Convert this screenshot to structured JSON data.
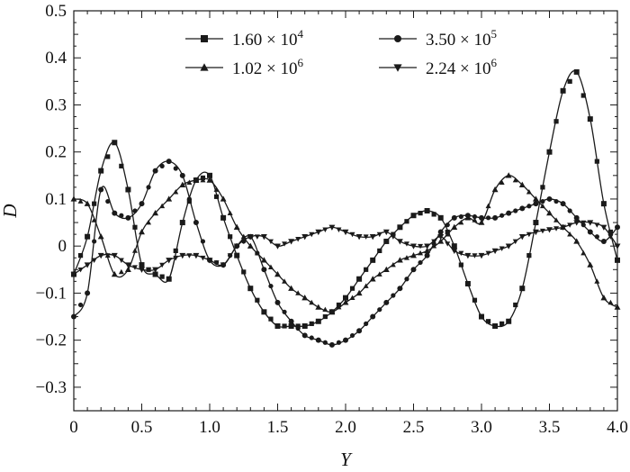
{
  "colors": {
    "line": "#1a1a1a",
    "background": "#ffffff"
  },
  "chart_data": {
    "type": "line",
    "xlabel": "Y",
    "ylabel": "D",
    "xlim": [
      0,
      4.0
    ],
    "ylim": [
      -0.35,
      0.5
    ],
    "x_ticks": [
      0,
      0.5,
      1.0,
      1.5,
      2.0,
      2.5,
      3.0,
      3.5,
      4.0
    ],
    "x_tick_labels": [
      "0",
      "0.5",
      "1.0",
      "1.5",
      "2.0",
      "2.5",
      "3.0",
      "3.5",
      "4.0"
    ],
    "y_ticks": [
      0.5,
      0.4,
      0.3,
      0.2,
      0.1,
      0,
      -0.1,
      -0.2,
      -0.3
    ],
    "y_tick_labels": [
      "0.5",
      "0.4",
      "0.3",
      "0.2",
      "0.1",
      "0",
      "−0.1",
      "−0.2",
      "−0.3"
    ],
    "grid": false,
    "legend_position": "top",
    "series": [
      {
        "name": "1.60 × 10",
        "exp": "4",
        "marker": "square",
        "x": [
          0,
          0.1,
          0.2,
          0.3,
          0.4,
          0.5,
          0.6,
          0.7,
          0.8,
          0.9,
          1.0,
          1.1,
          1.2,
          1.3,
          1.4,
          1.5,
          1.6,
          1.7,
          1.8,
          1.9,
          2.0,
          2.1,
          2.2,
          2.3,
          2.4,
          2.5,
          2.6,
          2.7,
          2.8,
          2.9,
          3.0,
          3.1,
          3.2,
          3.3,
          3.4,
          3.5,
          3.6,
          3.7,
          3.8,
          3.9,
          4.0
        ],
        "y": [
          -0.06,
          0.02,
          0.16,
          0.22,
          0.12,
          -0.04,
          -0.06,
          -0.07,
          0.05,
          0.14,
          0.15,
          0.06,
          -0.02,
          -0.09,
          -0.14,
          -0.17,
          -0.17,
          -0.17,
          -0.16,
          -0.14,
          -0.11,
          -0.07,
          -0.03,
          0.01,
          0.04,
          0.065,
          0.075,
          0.06,
          0.0,
          -0.08,
          -0.15,
          -0.17,
          -0.16,
          -0.09,
          0.05,
          0.2,
          0.33,
          0.37,
          0.27,
          0.09,
          -0.03
        ]
      },
      {
        "name": "3.50 × 10",
        "exp": "5",
        "marker": "circle",
        "x": [
          0,
          0.1,
          0.2,
          0.3,
          0.4,
          0.5,
          0.6,
          0.7,
          0.8,
          0.9,
          1.0,
          1.1,
          1.2,
          1.3,
          1.4,
          1.5,
          1.6,
          1.7,
          1.8,
          1.9,
          2.0,
          2.1,
          2.2,
          2.3,
          2.4,
          2.5,
          2.6,
          2.7,
          2.8,
          2.9,
          3.0,
          3.1,
          3.2,
          3.3,
          3.4,
          3.5,
          3.6,
          3.7,
          3.8,
          3.9,
          4.0
        ],
        "y": [
          -0.15,
          -0.1,
          0.12,
          0.07,
          0.06,
          0.09,
          0.16,
          0.18,
          0.15,
          0.05,
          -0.03,
          -0.04,
          0.0,
          0.02,
          -0.05,
          -0.12,
          -0.16,
          -0.19,
          -0.2,
          -0.21,
          -0.2,
          -0.18,
          -0.15,
          -0.12,
          -0.09,
          -0.05,
          -0.02,
          0.03,
          0.06,
          0.065,
          0.06,
          0.06,
          0.07,
          0.08,
          0.09,
          0.1,
          0.09,
          0.06,
          0.03,
          0.01,
          0.04
        ]
      },
      {
        "name": "1.02 × 10",
        "exp": "6",
        "marker": "triangle-up",
        "x": [
          0,
          0.1,
          0.2,
          0.3,
          0.4,
          0.5,
          0.6,
          0.7,
          0.8,
          0.9,
          1.0,
          1.1,
          1.2,
          1.3,
          1.4,
          1.5,
          1.6,
          1.7,
          1.8,
          1.9,
          2.0,
          2.1,
          2.2,
          2.3,
          2.4,
          2.5,
          2.6,
          2.7,
          2.8,
          2.9,
          3.0,
          3.1,
          3.2,
          3.3,
          3.4,
          3.5,
          3.6,
          3.7,
          3.8,
          3.9,
          4.0
        ],
        "y": [
          0.1,
          0.09,
          0.02,
          -0.06,
          -0.05,
          0.03,
          0.07,
          0.1,
          0.13,
          0.14,
          0.14,
          0.1,
          0.04,
          0.0,
          -0.03,
          -0.06,
          -0.09,
          -0.11,
          -0.13,
          -0.14,
          -0.12,
          -0.1,
          -0.07,
          -0.05,
          -0.03,
          -0.02,
          -0.01,
          0.01,
          0.04,
          0.06,
          0.05,
          0.12,
          0.15,
          0.13,
          0.1,
          0.07,
          0.04,
          0.01,
          -0.04,
          -0.11,
          -0.13
        ]
      },
      {
        "name": "2.24 × 10",
        "exp": "6",
        "marker": "triangle-down",
        "x": [
          0,
          0.1,
          0.2,
          0.3,
          0.4,
          0.5,
          0.6,
          0.7,
          0.8,
          0.9,
          1.0,
          1.1,
          1.2,
          1.3,
          1.4,
          1.5,
          1.6,
          1.7,
          1.8,
          1.9,
          2.0,
          2.1,
          2.2,
          2.3,
          2.4,
          2.5,
          2.6,
          2.7,
          2.8,
          2.9,
          3.0,
          3.1,
          3.2,
          3.3,
          3.4,
          3.5,
          3.6,
          3.7,
          3.8,
          3.9,
          4.0
        ],
        "y": [
          -0.06,
          -0.04,
          -0.02,
          -0.02,
          -0.04,
          -0.05,
          -0.05,
          -0.03,
          -0.02,
          -0.02,
          -0.03,
          -0.04,
          0.0,
          0.02,
          0.02,
          0.0,
          0.01,
          0.02,
          0.03,
          0.04,
          0.03,
          0.02,
          0.02,
          0.03,
          0.01,
          0.0,
          0.0,
          0.02,
          -0.01,
          -0.02,
          -0.02,
          -0.01,
          0.0,
          0.02,
          0.03,
          0.035,
          0.04,
          0.05,
          0.05,
          0.04,
          0.0
        ]
      }
    ]
  }
}
